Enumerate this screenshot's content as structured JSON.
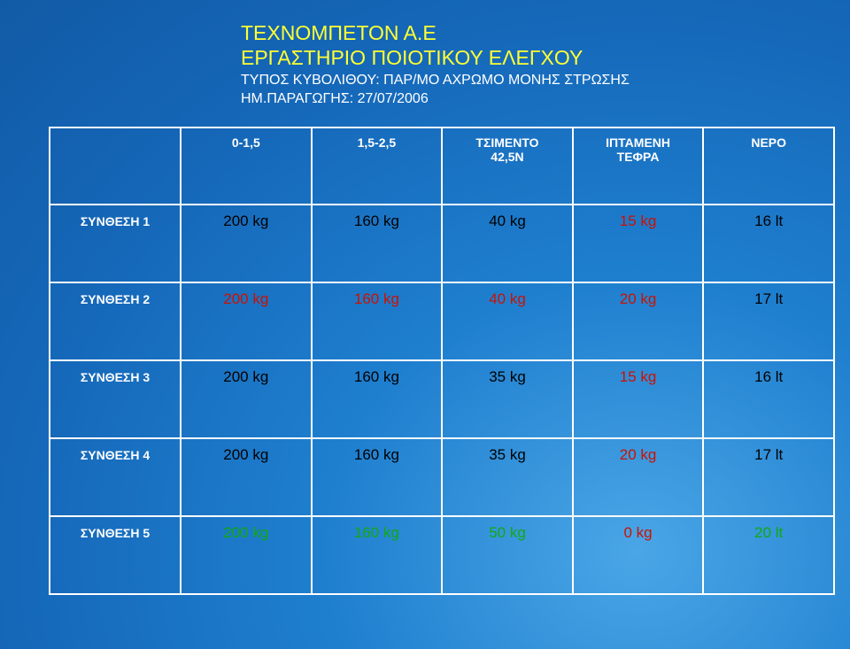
{
  "header": {
    "lines": [
      "ΤΕΧΝΟΜΠΕΤΟΝ Α.Ε",
      "ΕΡΓΑΣΤΗΡΙΟ ΠΟΙΟΤΙΚΟΥ ΕΛΕΓΧΟΥ",
      "ΤΥΠΟΣ ΚΥΒΟΛΙΘΟΥ: ΠΑΡ/ΜΟ ΑΧΡΩΜΟ ΜΟΝΗΣ ΣΤΡΩΣΗΣ",
      "ΗΜ.ΠΑΡΑΓΩΓΗΣ: 27/07/2006"
    ]
  },
  "table": {
    "columns": [
      "0-1,5",
      "1,5-2,5",
      "ΤΣΙΜΕΝΤΟ\n42,5N",
      "ΙΠΤΑΜΕΝΗ\nΤΕΦΡΑ",
      "ΝΕΡΟ"
    ],
    "rows": [
      {
        "label": "ΣΥΝΘΕΣΗ 1",
        "cells": [
          "200 kg",
          "160 kg",
          "40 kg",
          "15 kg",
          "16 lt"
        ]
      },
      {
        "label": "ΣΥΝΘΕΣΗ 2",
        "cells": [
          "200 kg",
          "160 kg",
          "40 kg",
          "20 kg",
          "17 lt"
        ]
      },
      {
        "label": "ΣΥΝΘΕΣΗ 3",
        "cells": [
          "200 kg",
          "160 kg",
          "35 kg",
          "15 kg",
          "16 lt"
        ]
      },
      {
        "label": "ΣΥΝΘΕΣΗ 4",
        "cells": [
          "200 kg",
          "160 kg",
          "35 kg",
          "20 kg",
          "17 lt"
        ]
      },
      {
        "label": "ΣΥΝΘΕΣΗ 5",
        "cells": [
          "200 kg",
          "160 kg",
          "50 kg",
          "0 kg",
          "20 lt"
        ]
      }
    ]
  }
}
